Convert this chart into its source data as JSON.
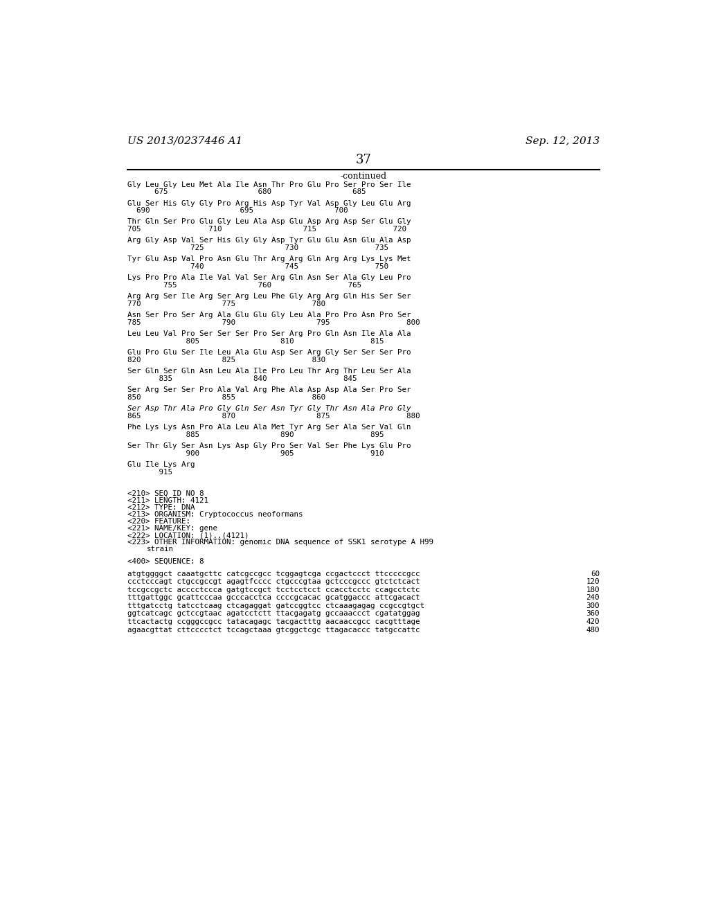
{
  "header_left": "US 2013/0237446 A1",
  "header_right": "Sep. 12, 2013",
  "page_number": "37",
  "continued_label": "-continued",
  "background_color": "#ffffff",
  "text_color": "#000000",
  "sequence_lines": [
    {
      "type": "aa",
      "seq": "Gly Leu Gly Leu Met Ala Ile Asn Thr Pro Glu Pro Ser Pro Ser Ile",
      "nums": "      675                    680                  685"
    },
    {
      "type": "aa",
      "seq": "Glu Ser His Gly Gly Pro Arg His Asp Tyr Val Asp Gly Leu Glu Arg",
      "nums": "  690                    695                  700"
    },
    {
      "type": "aa",
      "seq": "Thr Gln Ser Pro Glu Gly Leu Ala Asp Glu Asp Arg Asp Ser Glu Gly",
      "nums": "705               710                  715                 720"
    },
    {
      "type": "aa",
      "seq": "Arg Gly Asp Val Ser His Gly Gly Asp Tyr Glu Glu Asn Glu Ala Asp",
      "nums": "              725                  730                 735"
    },
    {
      "type": "aa",
      "seq": "Tyr Glu Asp Val Pro Asn Glu Thr Arg Arg Gln Arg Arg Lys Lys Met",
      "nums": "              740                  745                 750"
    },
    {
      "type": "aa",
      "seq": "Lys Pro Pro Ala Ile Val Val Ser Arg Gln Asn Ser Ala Gly Leu Pro",
      "nums": "        755                  760                 765"
    },
    {
      "type": "aa",
      "seq": "Arg Arg Ser Ile Arg Ser Arg Leu Phe Gly Arg Arg Gln His Ser Ser",
      "nums": "770                  775                 780"
    },
    {
      "type": "aa",
      "seq": "Asn Ser Pro Ser Arg Ala Glu Glu Gly Leu Ala Pro Pro Asn Pro Ser",
      "nums": "785                  790                  795                 800"
    },
    {
      "type": "aa",
      "seq": "Leu Leu Val Pro Ser Ser Ser Pro Ser Arg Pro Gln Asn Ile Ala Ala",
      "nums": "             805                  810                 815"
    },
    {
      "type": "aa",
      "seq": "Glu Pro Glu Ser Ile Leu Ala Glu Asp Ser Arg Gly Ser Ser Ser Pro",
      "nums": "820                  825                 830"
    },
    {
      "type": "aa",
      "seq": "Ser Gln Ser Gln Asn Leu Ala Ile Pro Leu Thr Arg Thr Leu Ser Ala",
      "nums": "       835                  840                 845"
    },
    {
      "type": "aa",
      "seq": "Ser Arg Ser Ser Pro Ala Val Arg Phe Ala Asp Asp Ala Ser Pro Ser",
      "nums": "850                  855                 860"
    },
    {
      "type": "aa_italic",
      "seq": "Ser Asp Thr Ala Pro Gly Gln Ser Asn Tyr Gly Thr Asn Ala Pro Gly",
      "nums": "865                  870                  875                 880"
    },
    {
      "type": "aa",
      "seq": "Phe Lys Lys Asn Pro Ala Leu Ala Met Tyr Arg Ser Ala Ser Val Gln",
      "nums": "             885                  890                 895"
    },
    {
      "type": "aa",
      "seq": "Ser Thr Gly Ser Asn Lys Asp Gly Pro Ser Val Ser Phe Lys Glu Pro",
      "nums": "             900                  905                 910"
    },
    {
      "type": "aa",
      "seq": "Glu Ile Lys Arg",
      "nums": "       915"
    },
    {
      "type": "blank"
    },
    {
      "type": "blank"
    },
    {
      "type": "meta",
      "seq": "<210> SEQ ID NO 8"
    },
    {
      "type": "meta",
      "seq": "<211> LENGTH: 4121"
    },
    {
      "type": "meta",
      "seq": "<212> TYPE: DNA"
    },
    {
      "type": "meta",
      "seq": "<213> ORGANISM: Cryptococcus neoformans"
    },
    {
      "type": "meta",
      "seq": "<220> FEATURE:"
    },
    {
      "type": "meta",
      "seq": "<221> NAME/KEY: gene"
    },
    {
      "type": "meta",
      "seq": "<222> LOCATION: (1)..(4121)"
    },
    {
      "type": "meta",
      "seq": "<223> OTHER INFORMATION: genomic DNA sequence of SSK1 serotype A H99"
    },
    {
      "type": "meta_indent",
      "seq": "strain"
    },
    {
      "type": "blank"
    },
    {
      "type": "meta",
      "seq": "<400> SEQUENCE: 8"
    },
    {
      "type": "blank"
    },
    {
      "type": "dna",
      "seq": "atgtggggct caaatgcttc catcgccgcc tcggagtcga ccgactccct ttcccccgcc",
      "num_right": "60"
    },
    {
      "type": "dna",
      "seq": "ccctcccagt ctgccgccgt agagtfcccc ctgcccgtaa gctcccgccc gtctctcact",
      "num_right": "120"
    },
    {
      "type": "dna",
      "seq": "tccgccgctc acccctccca gatgtccgct tcctcctcct ccacctcctc ccagcctctc",
      "num_right": "180"
    },
    {
      "type": "dna",
      "seq": "tttgattggc gcattcccaa gcccacctca ccccgcacac gcatggaccc attcgacact",
      "num_right": "240"
    },
    {
      "type": "dna",
      "seq": "tttgatcctg tatcctcaag ctcagaggat gatccggtcc ctcaaagagag ccgccgtgct",
      "num_right": "300"
    },
    {
      "type": "dna",
      "seq": "ggtcatcagc gctccgtaac agatcctctt ttacgagatg gccaaaccct cgatatggag",
      "num_right": "360"
    },
    {
      "type": "dna",
      "seq": "ttcactactg ccgggccgcc tatacagagc tacgactttg aacaaccgcc cacgtttage",
      "num_right": "420"
    },
    {
      "type": "dna",
      "seq": "agaacgttat cttcccctct tccagctaaa gtcggctcgc ttagacaccc tatgccattc",
      "num_right": "480"
    }
  ]
}
